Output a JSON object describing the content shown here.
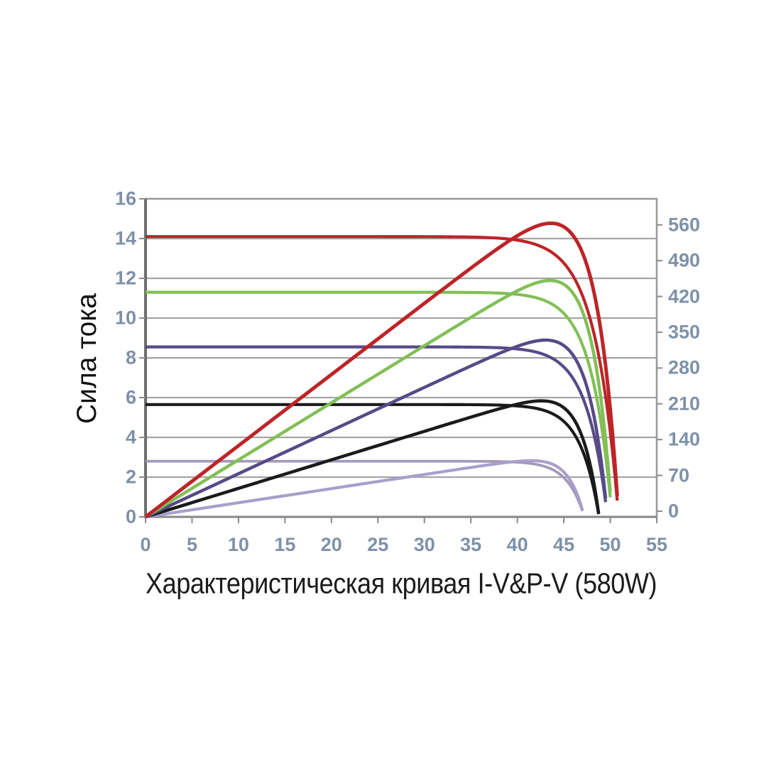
{
  "chart_data": {
    "type": "line",
    "title": "Характеристическая кривая  I-V&P-V (580W)",
    "ylabel_left": "Сила тока",
    "legend": "none",
    "grid": "horizontal",
    "x_axis": {
      "min": 0,
      "max": 55,
      "ticks": [
        0,
        5,
        10,
        15,
        20,
        25,
        30,
        35,
        40,
        45,
        50,
        55
      ]
    },
    "y_axis_left": {
      "min": 0,
      "max": 16,
      "ticks": [
        0,
        2,
        4,
        6,
        8,
        10,
        12,
        14,
        16
      ]
    },
    "y_axis_right": {
      "min": 0,
      "scale_max": 630,
      "ticks": [
        0,
        70,
        140,
        210,
        280,
        350,
        420,
        490,
        560
      ]
    },
    "series": [
      {
        "name": "I-V curve (light purple)",
        "kind": "iv",
        "color": "#a29ab6",
        "isc": 2.8,
        "voc": 47.2,
        "knee": 1.8,
        "width": 3.8
      },
      {
        "name": "P-V curve (light purple)",
        "kind": "pv",
        "color": "#a99ecb",
        "isc": 2.8,
        "voc": 47.2,
        "knee": 1.8,
        "width": 4.2
      },
      {
        "name": "I-V curve (black)",
        "kind": "iv",
        "color": "#1a1a1a",
        "isc": 5.65,
        "voc": 48.8,
        "knee": 2.0,
        "width": 4.2
      },
      {
        "name": "P-V curve (black)",
        "kind": "pv",
        "color": "#1a1a1a",
        "isc": 5.65,
        "voc": 48.8,
        "knee": 2.0,
        "width": 4.5
      },
      {
        "name": "I-V curve (purple)",
        "kind": "iv",
        "color": "#574a87",
        "isc": 8.55,
        "voc": 49.7,
        "knee": 2.2,
        "width": 4.2
      },
      {
        "name": "P-V curve (purple)",
        "kind": "pv",
        "color": "#574a87",
        "isc": 8.55,
        "voc": 49.7,
        "knee": 2.2,
        "width": 4.5
      },
      {
        "name": "I-V curve (green)",
        "kind": "iv",
        "color": "#82bf56",
        "isc": 11.3,
        "voc": 50.2,
        "knee": 2.2,
        "width": 4.2
      },
      {
        "name": "P-V curve (green)",
        "kind": "pv",
        "color": "#82bf56",
        "isc": 11.3,
        "voc": 50.2,
        "knee": 2.2,
        "width": 4.5
      },
      {
        "name": "I-V curve (red)",
        "kind": "iv",
        "color": "#bd2428",
        "isc": 14.1,
        "voc": 50.9,
        "knee": 2.5,
        "width": 4.2
      },
      {
        "name": "P-V curve (red)",
        "kind": "pv",
        "color": "#bd2428",
        "isc": 14.1,
        "voc": 50.9,
        "knee": 2.5,
        "width": 5.0
      }
    ],
    "peak_power_watts": 580
  },
  "colors": {
    "background": "#ffffff",
    "grid": "#a5a5a5",
    "border": "#9a9a9a",
    "axis_left": "#6d6d6d",
    "axis_bottom": "#878787",
    "tick": "#8a8a8a",
    "tick_label": "#7e91a8",
    "title": "#1b1b1b"
  }
}
